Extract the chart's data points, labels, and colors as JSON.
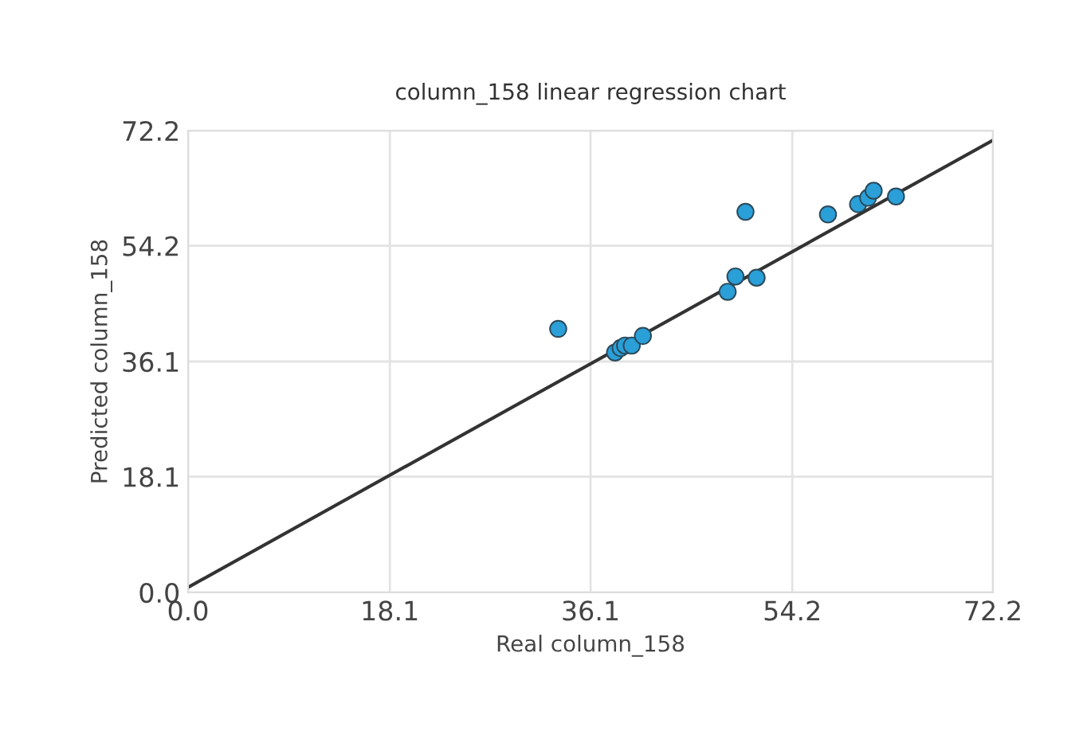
{
  "chart_data": {
    "type": "scatter",
    "title": "column_158 linear regression chart",
    "xlabel": "Real column_158",
    "ylabel": "Predicted column_158",
    "xlim": [
      0,
      72.2
    ],
    "ylim": [
      0,
      72.2
    ],
    "xticks": [
      {
        "value": 0,
        "label": "0.0"
      },
      18.1,
      36.1,
      54.2,
      72.2
    ],
    "yticks": [
      {
        "value": 0,
        "label": "0.0"
      },
      18.1,
      36.1,
      54.2,
      72.2
    ],
    "grid": true,
    "series": [
      {
        "marker": "circle",
        "color": "#2a9fd8",
        "x": [
          33.2,
          38.3,
          38.8,
          39.2,
          39.8,
          40.8,
          48.4,
          49.1,
          50.0,
          51.0,
          57.4,
          60.1,
          61.0,
          61.5,
          63.5
        ],
        "values": [
          41.2,
          37.5,
          38.2,
          38.6,
          38.6,
          40.1,
          47.0,
          49.4,
          59.5,
          49.2,
          59.1,
          60.7,
          61.7,
          62.8,
          61.9
        ]
      },
      {
        "type": "line",
        "color": "#333333",
        "marker": "none",
        "x": [
          0,
          72.2
        ],
        "values": [
          0.8,
          70.7
        ]
      }
    ]
  }
}
